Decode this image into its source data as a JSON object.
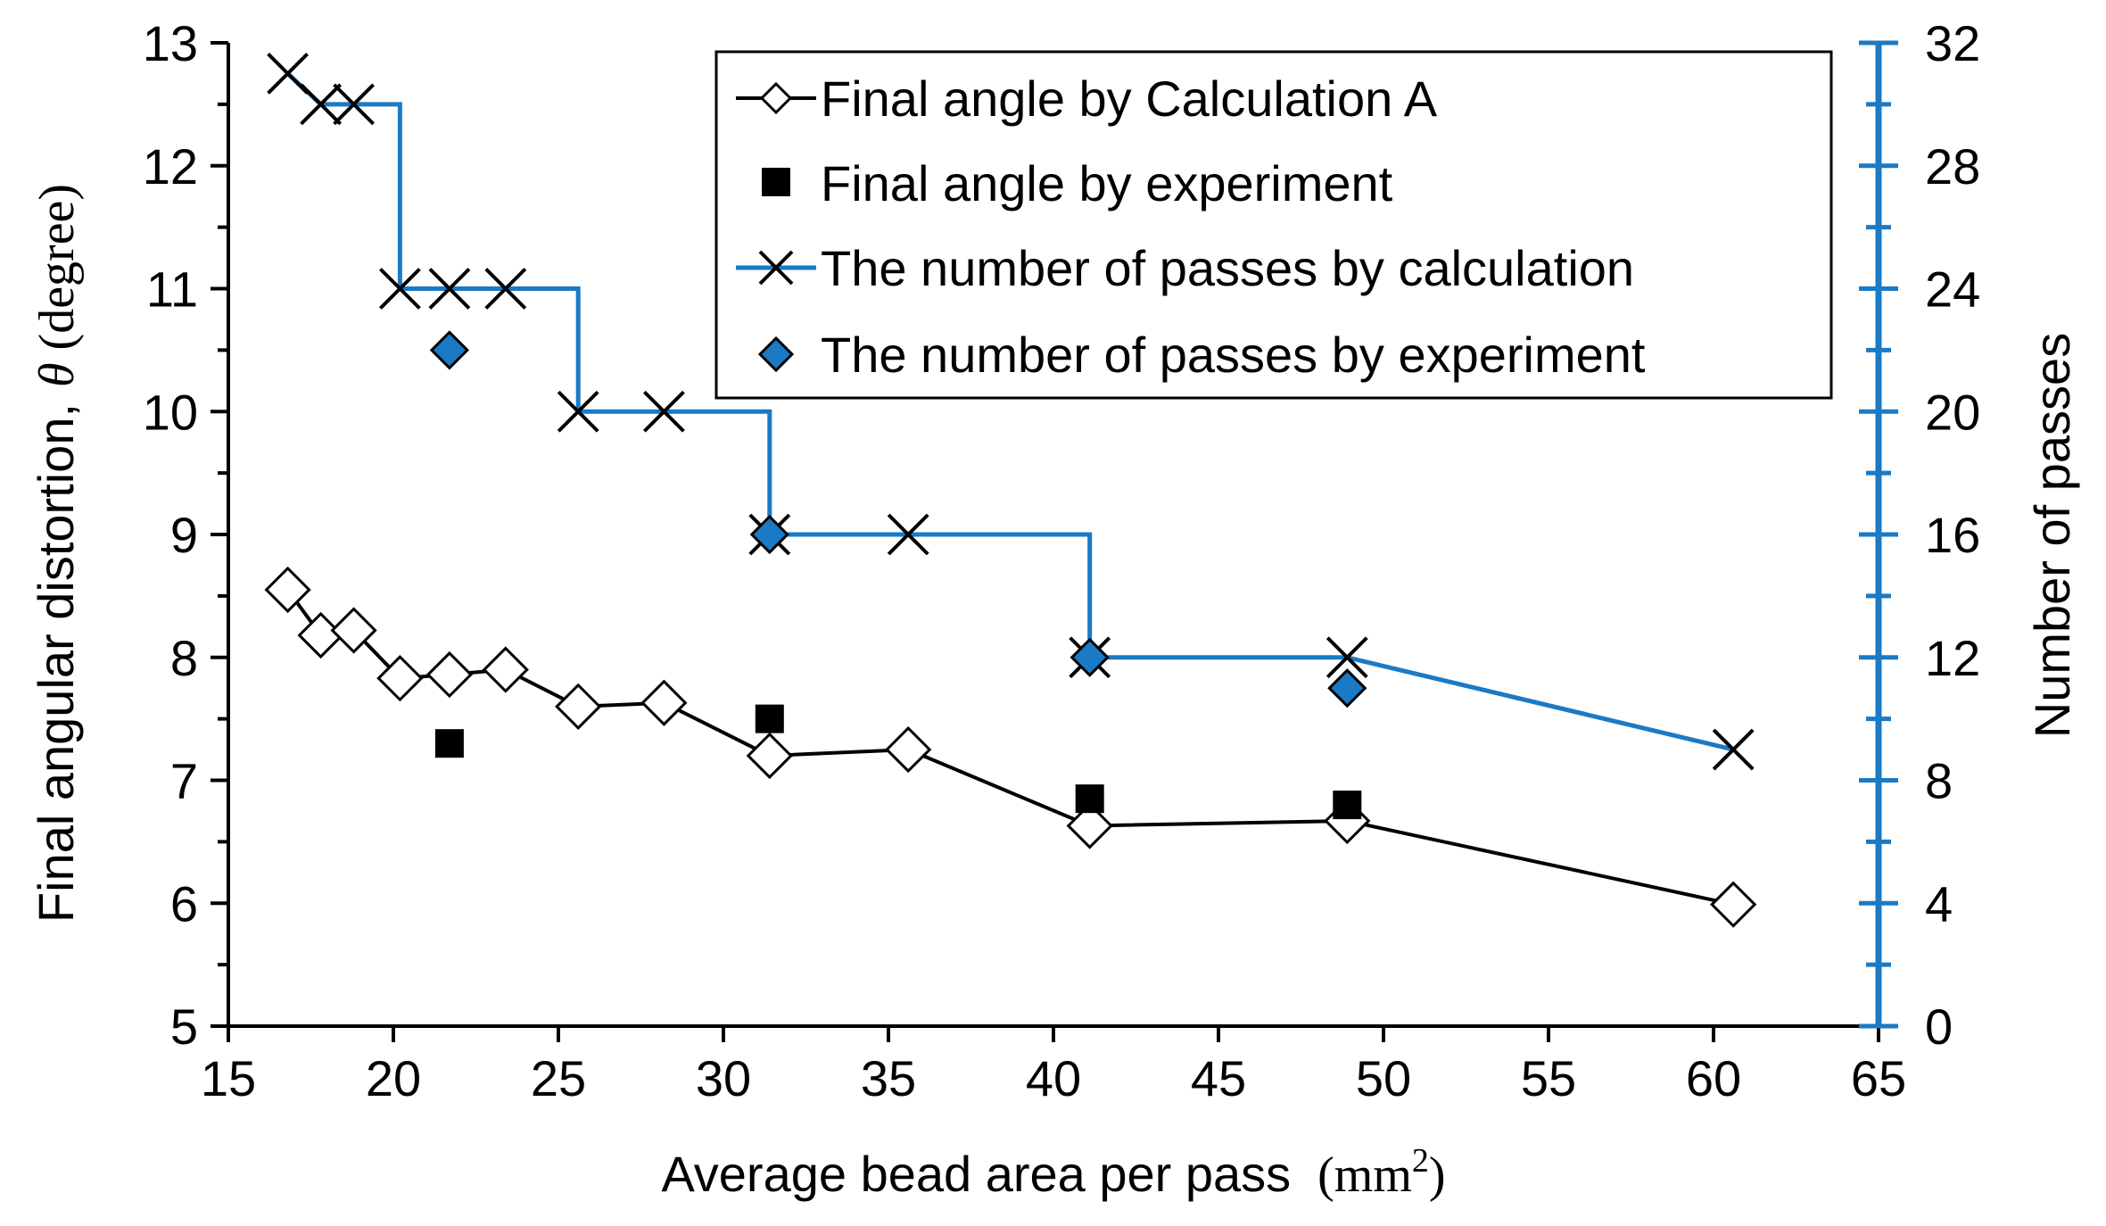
{
  "chart_data": {
    "type": "line",
    "xlabel": "Average bead area per pass",
    "xlabel_unit": "(mm",
    "xlabel_unit_sup": "2",
    "xlabel_unit_close": ")",
    "ylabel": "Final angular distortion,",
    "ylabel_symbol": "θ",
    "ylabel_unit": "(degree)",
    "y2label": "Number of passes",
    "xlim": [
      15,
      65
    ],
    "ylim": [
      5,
      13
    ],
    "y2lim": [
      0,
      32
    ],
    "x_ticks": [
      "15",
      "20",
      "25",
      "30",
      "35",
      "40",
      "45",
      "50",
      "55",
      "60",
      "65"
    ],
    "y_ticks": [
      "5",
      "6",
      "7",
      "8",
      "9",
      "10",
      "11",
      "12",
      "13"
    ],
    "y2_ticks": [
      "0",
      "4",
      "8",
      "12",
      "16",
      "20",
      "24",
      "28",
      "32"
    ],
    "colors": {
      "blue": "#1a7ac6",
      "black": "#000000"
    },
    "series": [
      {
        "name": "Final angle by Calculation A",
        "axis": "left",
        "style": "line-open-diamond",
        "x": [
          16.8,
          17.8,
          18.8,
          20.2,
          21.7,
          23.4,
          25.6,
          28.2,
          31.4,
          35.6,
          41.1,
          48.9,
          60.6
        ],
        "y": [
          8.55,
          8.18,
          8.22,
          7.83,
          7.86,
          7.9,
          7.6,
          7.63,
          7.2,
          7.25,
          6.63,
          6.67,
          5.99
        ]
      },
      {
        "name": "Final angle by experiment",
        "axis": "left",
        "style": "filled-square",
        "x": [
          21.7,
          31.4,
          41.1,
          48.9
        ],
        "y": [
          7.3,
          7.5,
          6.85,
          6.8
        ]
      },
      {
        "name": "The number of passes by calculation",
        "axis": "right",
        "style": "step-line-x",
        "x": [
          16.8,
          17.8,
          18.8,
          20.2,
          21.7,
          23.4,
          25.6,
          28.2,
          31.4,
          35.6,
          41.1,
          48.9,
          60.6
        ],
        "y": [
          31,
          30,
          30,
          24,
          24,
          24,
          20,
          20,
          16,
          16,
          12,
          12,
          9
        ]
      },
      {
        "name": "The number of passes by experiment",
        "axis": "right",
        "style": "blue-diamond",
        "x": [
          21.7,
          31.4,
          41.1,
          48.9
        ],
        "y": [
          22,
          16,
          12,
          11
        ]
      }
    ]
  }
}
